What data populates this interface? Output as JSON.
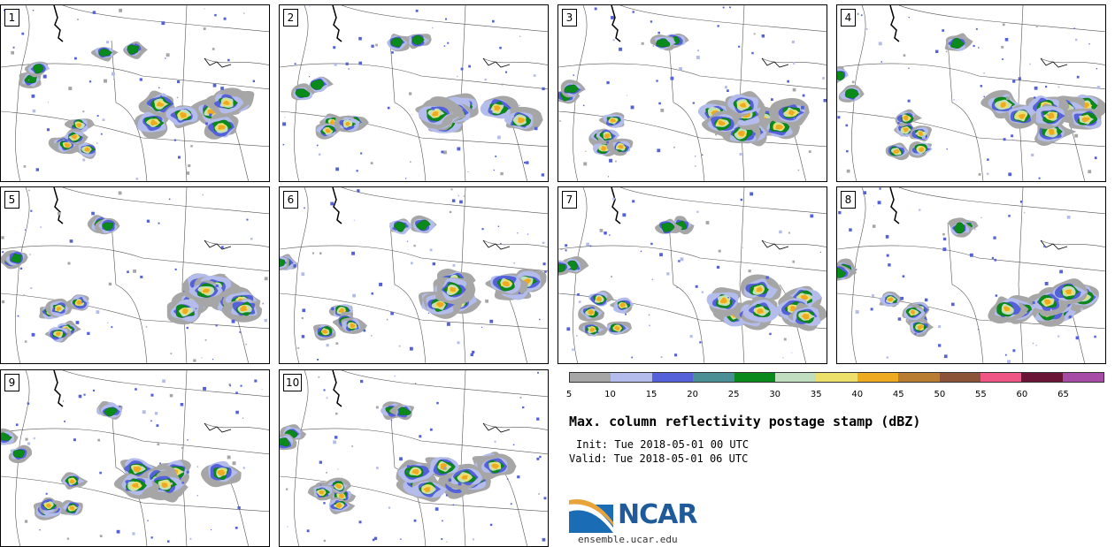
{
  "panels": [
    {
      "label": "1"
    },
    {
      "label": "2"
    },
    {
      "label": "3"
    },
    {
      "label": "4"
    },
    {
      "label": "5"
    },
    {
      "label": "6"
    },
    {
      "label": "7"
    },
    {
      "label": "8"
    },
    {
      "label": "9"
    },
    {
      "label": "10"
    }
  ],
  "legend": {
    "colors": [
      "#a6a6a6",
      "#b3bcea",
      "#5461d9",
      "#4a8f93",
      "#0a8a1a",
      "#c1dfc0",
      "#ede06a",
      "#eeab22",
      "#b97d32",
      "#8b5438",
      "#ef5686",
      "#6a1536",
      "#a64ca6"
    ],
    "ticks": [
      "5",
      "10",
      "15",
      "20",
      "25",
      "30",
      "35",
      "40",
      "45",
      "50",
      "55",
      "60",
      "65"
    ]
  },
  "title": "Max. column reflectivity postage stamp (dBZ)",
  "init": "Init: Tue 2018-05-01 00 UTC",
  "valid": "Valid: Tue 2018-05-01 06 UTC",
  "logo": {
    "text": "NCAR",
    "site": "ensemble.ucar.edu"
  }
}
